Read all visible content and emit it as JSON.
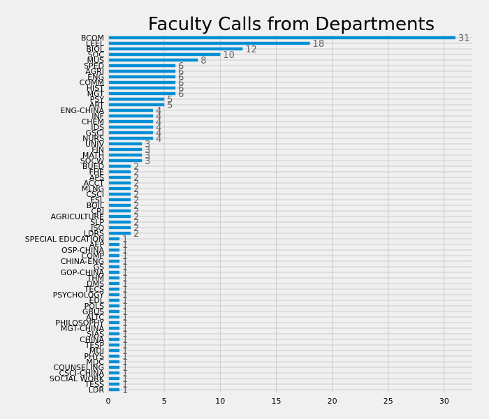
{
  "chart_data": {
    "type": "bar",
    "orientation": "horizontal",
    "title": "Faculty Calls from Departments",
    "xlabel": "",
    "ylabel": "",
    "xlim": [
      0,
      32.5
    ],
    "xticks": [
      0,
      5,
      10,
      15,
      20,
      25,
      30
    ],
    "grid": true,
    "bar_color": "#008fd5",
    "background_color": "#f0f0f0",
    "grid_color": "#cbcbcb",
    "label_color": "#666666",
    "categories": [
      "BCOM",
      "LEEL",
      "BIOL",
      "SOC",
      "MUS",
      "SPED",
      "AGRI",
      "ENG",
      "COMM",
      "HIST",
      "MGT",
      "PSY",
      "ART",
      "ENG-CHINA",
      "INF",
      "CHEM",
      "IDS",
      "GSCI",
      "NURS",
      "UNIV",
      "FIN",
      "MATH",
      "SOCW",
      "BUED",
      "FHE",
      "APS",
      "ACCT",
      "MLNG",
      "CSCI",
      "ESL",
      "BOIL",
      "CRJ",
      "AGRICULTURE",
      "SLP",
      "JSQ",
      "LDRS",
      "SPECIAL EDUCATION",
      "AEP",
      "OSP-CHINA",
      "COMP",
      "CHINA-ENG",
      "GS",
      "GOP-CHINA",
      "THM",
      "DMS",
      "TECS",
      "PSYCHOLOGY",
      "EDL",
      "POLS",
      "GBUS",
      "ALTC",
      "PHILOSOPHY",
      "MGT-CHINA",
      "SIAS",
      "CHINA",
      "TESP",
      "MDI",
      "PHYS",
      "MDC",
      "COUNSELING",
      "CSCI-CHINA",
      "SOCIAL WORK",
      "TESS",
      "LDR"
    ],
    "values": [
      31,
      18,
      12,
      10,
      8,
      6,
      6,
      6,
      6,
      6,
      6,
      5,
      5,
      4,
      4,
      4,
      4,
      4,
      4,
      3,
      3,
      3,
      3,
      2,
      2,
      2,
      2,
      2,
      2,
      2,
      2,
      2,
      2,
      2,
      2,
      2,
      1,
      1,
      1,
      1,
      1,
      1,
      1,
      1,
      1,
      1,
      1,
      1,
      1,
      1,
      1,
      1,
      1,
      1,
      1,
      1,
      1,
      1,
      1,
      1,
      1,
      1,
      1,
      1
    ]
  }
}
